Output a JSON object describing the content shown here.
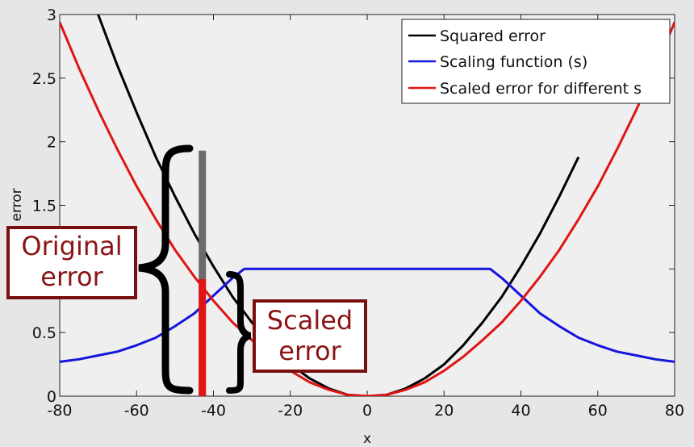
{
  "chart_data": {
    "type": "line",
    "title": "",
    "xlabel": "x",
    "ylabel": "2 error",
    "xlim": [
      -80,
      80
    ],
    "ylim": [
      0,
      3
    ],
    "xticks": [
      "-80",
      "-60",
      "-40",
      "-20",
      "0",
      "20",
      "40",
      "60",
      "80"
    ],
    "yticks": [
      "0",
      "0.5",
      "1",
      "1.5",
      "2",
      "2.5",
      "3"
    ],
    "grid": false,
    "legend_position": "top-right",
    "series": [
      {
        "name": "Squared error",
        "color": "#000000",
        "x": [
          -70,
          -65,
          -60,
          -55,
          -50,
          -45,
          -40,
          -35,
          -30,
          -25,
          -20,
          -15,
          -10,
          -5,
          0,
          5,
          10,
          15,
          20,
          25,
          30,
          35,
          40,
          45,
          50,
          55
        ],
        "y": [
          3.0,
          2.6,
          2.23,
          1.88,
          1.57,
          1.28,
          1.02,
          0.78,
          0.58,
          0.4,
          0.25,
          0.14,
          0.06,
          0.01,
          0,
          0.01,
          0.06,
          0.14,
          0.25,
          0.4,
          0.58,
          0.78,
          1.02,
          1.28,
          1.57,
          1.88
        ]
      },
      {
        "name": "Scaling function (s)",
        "color": "#1414dc",
        "x": [
          -80,
          -75,
          -70,
          -65,
          -60,
          -55,
          -50,
          -45,
          -40,
          -35,
          -32,
          32,
          35,
          40,
          45,
          50,
          55,
          60,
          65,
          70,
          75,
          80
        ],
        "y": [
          0.27,
          0.29,
          0.32,
          0.35,
          0.4,
          0.46,
          0.55,
          0.65,
          0.79,
          0.93,
          1.0,
          1.0,
          0.93,
          0.79,
          0.65,
          0.55,
          0.46,
          0.4,
          0.35,
          0.32,
          0.29,
          0.27
        ]
      },
      {
        "name": "Scaled error for different s",
        "color": "#e01414",
        "x": [
          -80,
          -75,
          -70,
          -65,
          -60,
          -55,
          -50,
          -45,
          -40,
          -35,
          -30,
          -25,
          -20,
          -15,
          -10,
          -5,
          0,
          5,
          10,
          15,
          20,
          25,
          30,
          35,
          40,
          45,
          50,
          55,
          60,
          65,
          70,
          75,
          80
        ],
        "y": [
          2.94,
          2.58,
          2.25,
          1.94,
          1.65,
          1.39,
          1.15,
          0.94,
          0.75,
          0.58,
          0.44,
          0.31,
          0.2,
          0.11,
          0.05,
          0.01,
          0,
          0.01,
          0.05,
          0.11,
          0.2,
          0.31,
          0.44,
          0.58,
          0.75,
          0.94,
          1.15,
          1.39,
          1.65,
          1.94,
          2.25,
          2.58,
          2.94
        ]
      }
    ],
    "bars": [
      {
        "x": -43,
        "y0": 0,
        "y1": 1.93,
        "color": "#6b6b6b",
        "label": "Original error"
      },
      {
        "x": -43,
        "y0": 0,
        "y1": 0.92,
        "color": "#e01414",
        "label": "Scaled error"
      }
    ],
    "annotations": [
      {
        "text_lines": [
          "Original",
          "error"
        ],
        "color": "#8a1414"
      },
      {
        "text_lines": [
          "Scaled",
          "error"
        ],
        "color": "#8a1414"
      }
    ]
  }
}
